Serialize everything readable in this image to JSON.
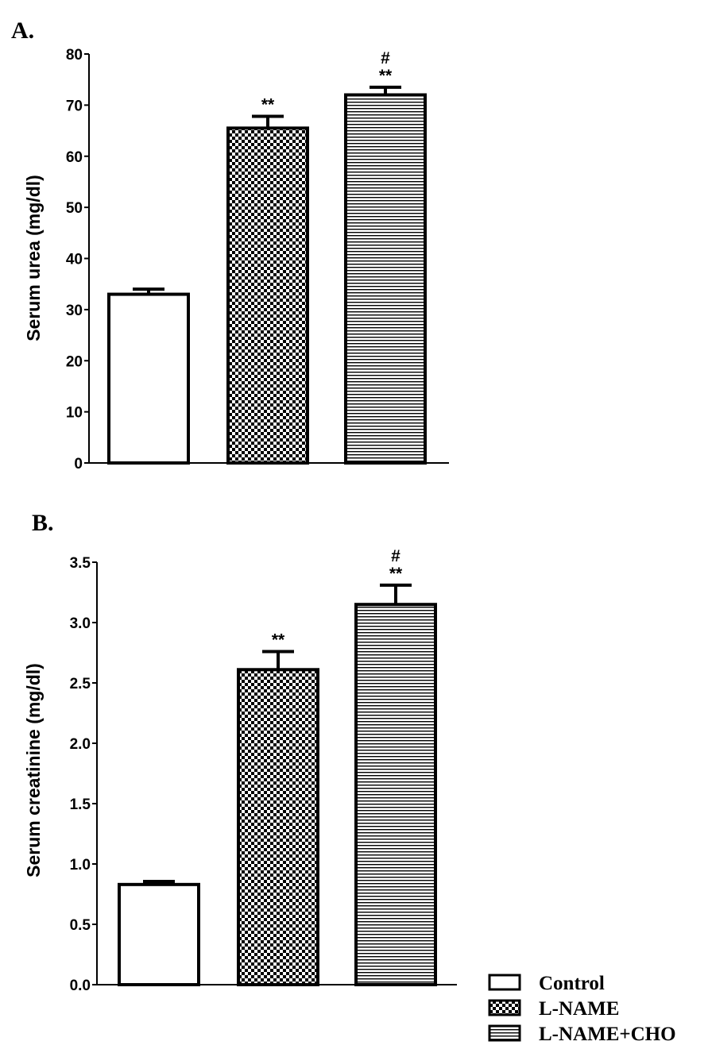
{
  "chart_data": [
    {
      "type": "bar",
      "panel_label": "A.",
      "categories": [
        "Control",
        "L-NAME",
        "L-NAME+CHO"
      ],
      "values": [
        33,
        65.5,
        72
      ],
      "errors": [
        1,
        2.3,
        1.5
      ],
      "annotations": [
        [],
        [
          "**"
        ],
        [
          "#",
          "**"
        ]
      ],
      "ylabel": "Serum urea (mg/dl)",
      "ylim": [
        0,
        80
      ],
      "yticks": [
        0,
        10,
        20,
        30,
        40,
        50,
        60,
        70,
        80
      ],
      "ytick_labels": [
        "0",
        "10",
        "20",
        "30",
        "40",
        "50",
        "60",
        "70",
        "80"
      ],
      "grid": false
    },
    {
      "type": "bar",
      "panel_label": "B.",
      "categories": [
        "Control",
        "L-NAME",
        "L-NAME+CHO"
      ],
      "values": [
        0.83,
        2.61,
        3.15
      ],
      "errors": [
        0.025,
        0.15,
        0.16
      ],
      "annotations": [
        [],
        [
          "**"
        ],
        [
          "#",
          "**"
        ]
      ],
      "ylabel": "Serum creatinine (mg/dl)",
      "ylim": [
        0,
        3.5
      ],
      "yticks": [
        0,
        0.5,
        1,
        1.5,
        2,
        2.5,
        3,
        3.5
      ],
      "ytick_labels": [
        "0.0",
        "0.5",
        "1.0",
        "1.5",
        "2.0",
        "2.5",
        "3.0",
        "3.5"
      ],
      "grid": false
    }
  ],
  "legend": {
    "placement": "bottom-right",
    "entries": [
      {
        "label": "Control",
        "pattern": "plain"
      },
      {
        "label": "L-NAME",
        "pattern": "checker"
      },
      {
        "label": "L-NAME+CHO",
        "pattern": "horizontal-lines"
      }
    ]
  },
  "colors": {
    "ink": "#000000",
    "fill": "#ffffff"
  }
}
